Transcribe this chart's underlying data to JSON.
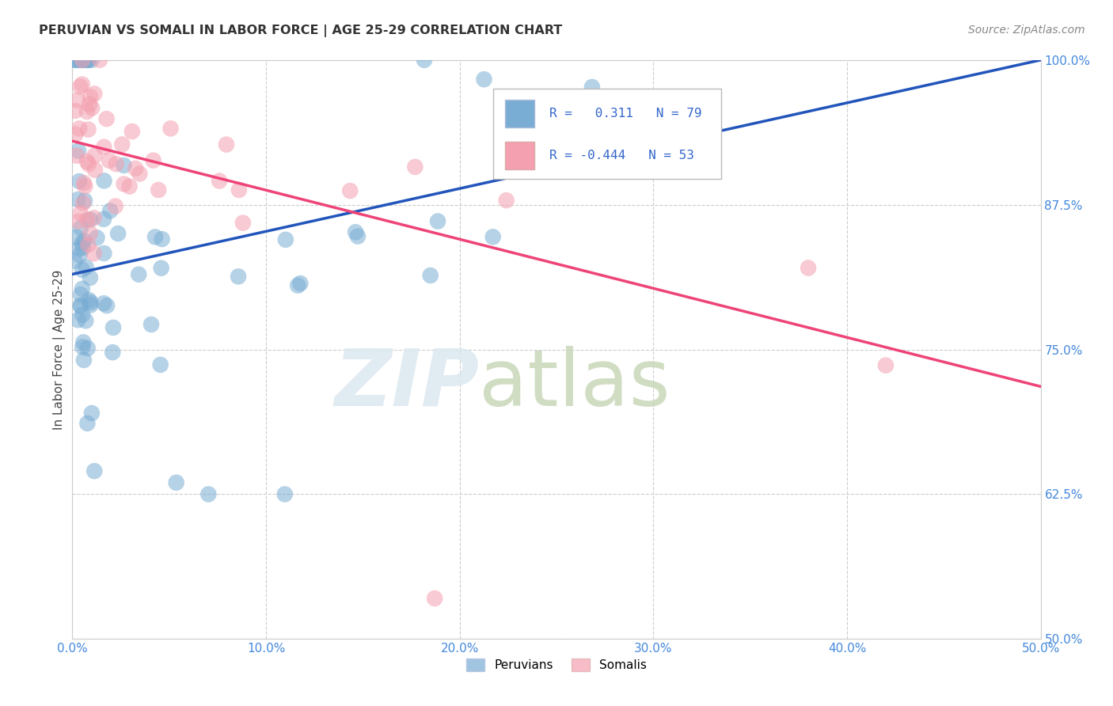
{
  "title": "PERUVIAN VS SOMALI IN LABOR FORCE | AGE 25-29 CORRELATION CHART",
  "source": "Source: ZipAtlas.com",
  "ylabel": "In Labor Force | Age 25-29",
  "xlim": [
    0.0,
    0.5
  ],
  "ylim": [
    0.5,
    1.0
  ],
  "xticks": [
    0.0,
    0.1,
    0.2,
    0.3,
    0.4,
    0.5
  ],
  "xticklabels": [
    "0.0%",
    "10.0%",
    "20.0%",
    "30.0%",
    "40.0%",
    "50.0%"
  ],
  "yticks": [
    0.5,
    0.625,
    0.75,
    0.875,
    1.0
  ],
  "yticklabels": [
    "50.0%",
    "62.5%",
    "75.0%",
    "87.5%",
    "100.0%"
  ],
  "peruvian_R": 0.311,
  "peruvian_N": 79,
  "somali_R": -0.444,
  "somali_N": 53,
  "peruvian_color": "#7aadd4",
  "somali_color": "#f4a0b0",
  "peruvian_line_color": "#2255bb",
  "somali_line_color": "#ee4477",
  "legend_peruvians": "Peruvians",
  "legend_somalis": "Somalis",
  "blue_line_x0": 0.0,
  "blue_line_y0": 0.815,
  "blue_line_x1": 0.5,
  "blue_line_y1": 1.0,
  "pink_line_x0": 0.0,
  "pink_line_y0": 0.93,
  "pink_line_x1": 0.5,
  "pink_line_y1": 0.718
}
